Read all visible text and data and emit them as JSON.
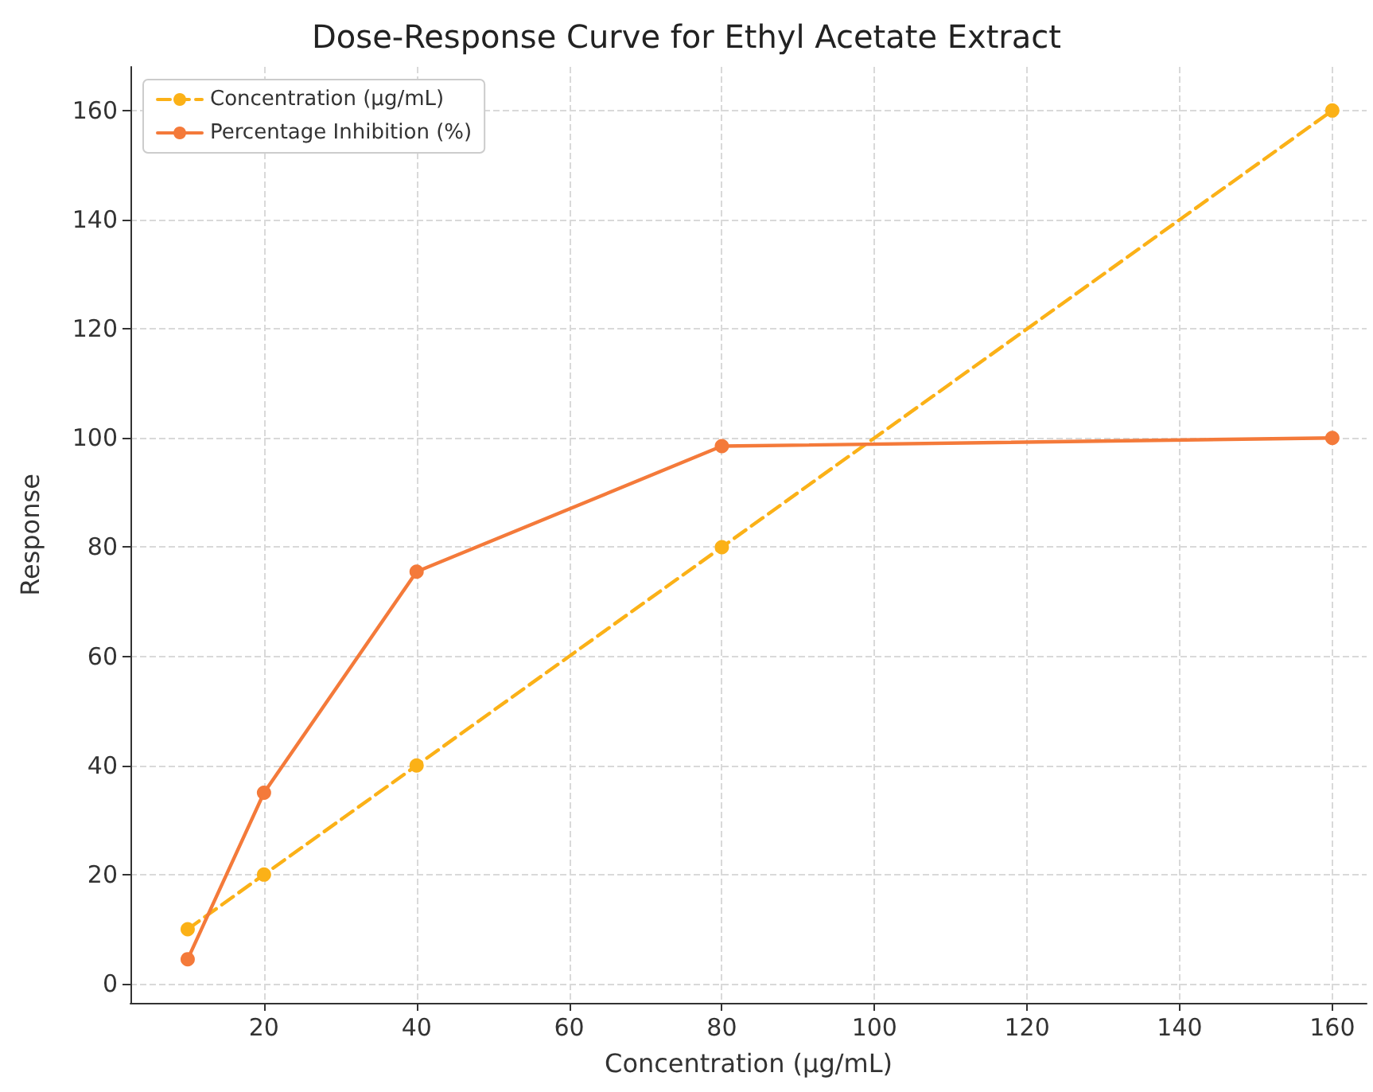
{
  "chart_data": {
    "type": "line",
    "title": "Dose-Response Curve for Ethyl Acetate Extract",
    "xlabel": "Concentration (µg/mL)",
    "ylabel": "Response",
    "x": [
      10,
      20,
      40,
      80,
      160
    ],
    "series": [
      {
        "name": "Concentration (µg/mL)",
        "color": "#fbb117",
        "line_style": "dashed",
        "values": [
          10,
          20,
          40,
          80,
          160
        ]
      },
      {
        "name": "Percentage Inhibition (%)",
        "color": "#f47a3a",
        "line_style": "solid",
        "values": [
          4.5,
          35,
          75.5,
          98.5,
          100
        ]
      }
    ],
    "xlim": [
      2.5,
      164.5
    ],
    "xticks": [
      20,
      40,
      60,
      80,
      100,
      120,
      140,
      160
    ],
    "ylim": [
      -3.5,
      168
    ],
    "yticks": [
      0,
      20,
      40,
      60,
      80,
      100,
      120,
      140,
      160
    ],
    "grid": true,
    "legend": "top left",
    "marker": "circle"
  }
}
